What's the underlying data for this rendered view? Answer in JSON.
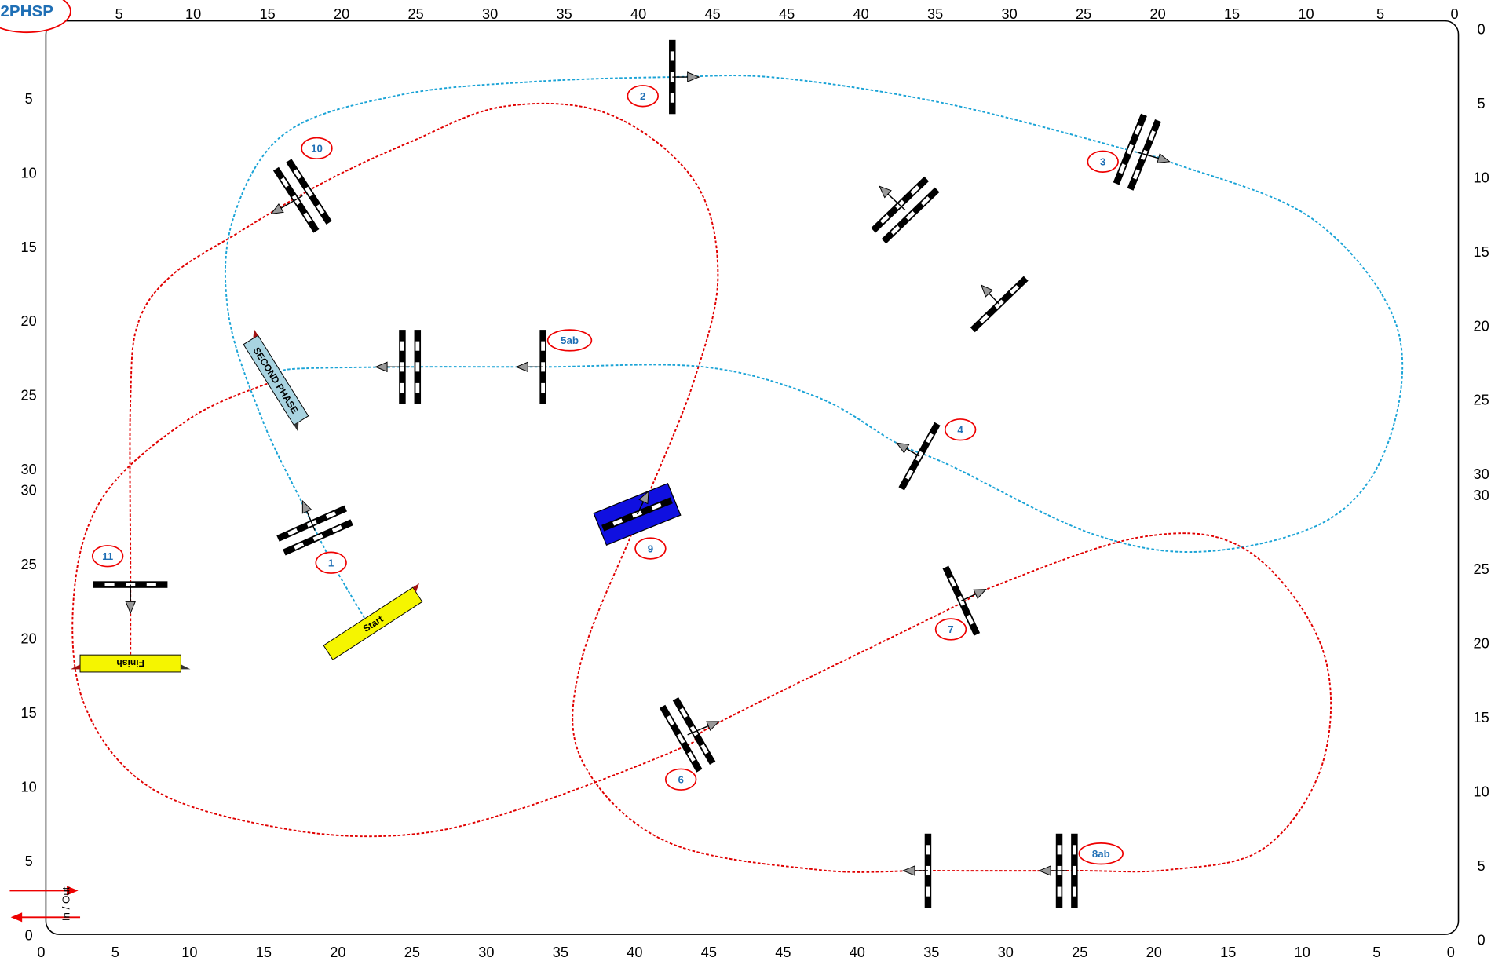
{
  "badge": "2PHSP",
  "axes": {
    "top": [
      5,
      10,
      15,
      20,
      25,
      30,
      35,
      40,
      45,
      45,
      40,
      35,
      30,
      25,
      20,
      15,
      10,
      5,
      0
    ],
    "bottom": [
      0,
      5,
      10,
      15,
      20,
      25,
      30,
      35,
      40,
      45,
      45,
      40,
      35,
      30,
      25,
      20,
      15,
      10,
      5,
      0
    ],
    "left": [
      5,
      10,
      15,
      20,
      25,
      30,
      30,
      25,
      20,
      15,
      10,
      5,
      0
    ],
    "right": [
      0,
      5,
      10,
      15,
      20,
      25,
      30,
      30,
      25,
      20,
      15,
      10,
      5,
      0
    ]
  },
  "fences": [
    {
      "label": "1"
    },
    {
      "label": "2"
    },
    {
      "label": "3"
    },
    {
      "label": "4"
    },
    {
      "label": "5ab"
    },
    {
      "label": "6"
    },
    {
      "label": "7"
    },
    {
      "label": "8ab"
    },
    {
      "label": "9"
    },
    {
      "label": "10"
    },
    {
      "label": "11"
    }
  ],
  "markers": {
    "second_phase": "SECOND PHASE",
    "start": "Start",
    "finish": "Finish",
    "in_out": "In / Out"
  }
}
